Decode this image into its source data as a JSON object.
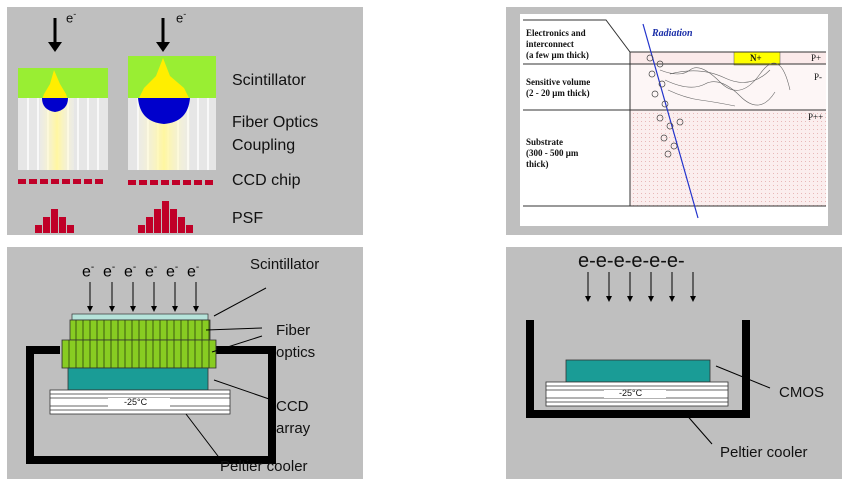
{
  "colors": {
    "panel": "#bfbfbf",
    "scintillator": "#99ee33",
    "yellow": "#ffee00",
    "blue": "#0000cc",
    "fiber": "#e6e6e6",
    "ccd_red": "#c00028",
    "teal": "#1a9c96",
    "green_fiber": "#88cc22",
    "radiation": "#2233cc",
    "nplus": "#ffff00"
  },
  "icons": [
    "down-arrow-icon",
    "electron-icon",
    "pointer-line-icon"
  ],
  "panel_tl": {
    "electron": "e",
    "electron_sup": "-",
    "labels": {
      "scintillator": "Scintillator",
      "fiber_optics_1": "Fiber Optics",
      "fiber_optics_2": "Coupling",
      "ccd_chip": "CCD chip",
      "psf": "PSF"
    },
    "psf_left": [
      1,
      2,
      3,
      2,
      1
    ],
    "psf_right": [
      1,
      2,
      3,
      4,
      3,
      2,
      1
    ]
  },
  "panel_tr": {
    "radiation": "Radiation",
    "nplus": "N+",
    "layers": [
      {
        "line1": "Electronics and",
        "line2": "interconnect",
        "line3": "(a few μm thick)",
        "tag": "P+"
      },
      {
        "line1": "Sensitive volume",
        "line2": "(2 - 20 μm thick)",
        "tag": "P-"
      },
      {
        "line1": "Substrate",
        "line2": "(300 - 500 μm",
        "line3": "thick)",
        "tag": "P++"
      }
    ],
    "charge": "⊖"
  },
  "panel_bl": {
    "electrons": [
      "e-",
      "e-",
      "e-",
      "e-",
      "e-",
      "e-"
    ],
    "labels": {
      "scintillator": "Scintillator",
      "fiber_1": "Fiber",
      "fiber_2": "optics",
      "ccd_1": "CCD",
      "ccd_2": "array",
      "temp": "-25°C",
      "peltier": "Peltier cooler"
    }
  },
  "panel_br": {
    "electrons": "e-e-e-e-e-e-",
    "labels": {
      "temp": "-25°C",
      "cmos": "CMOS",
      "peltier": "Peltier cooler"
    }
  }
}
